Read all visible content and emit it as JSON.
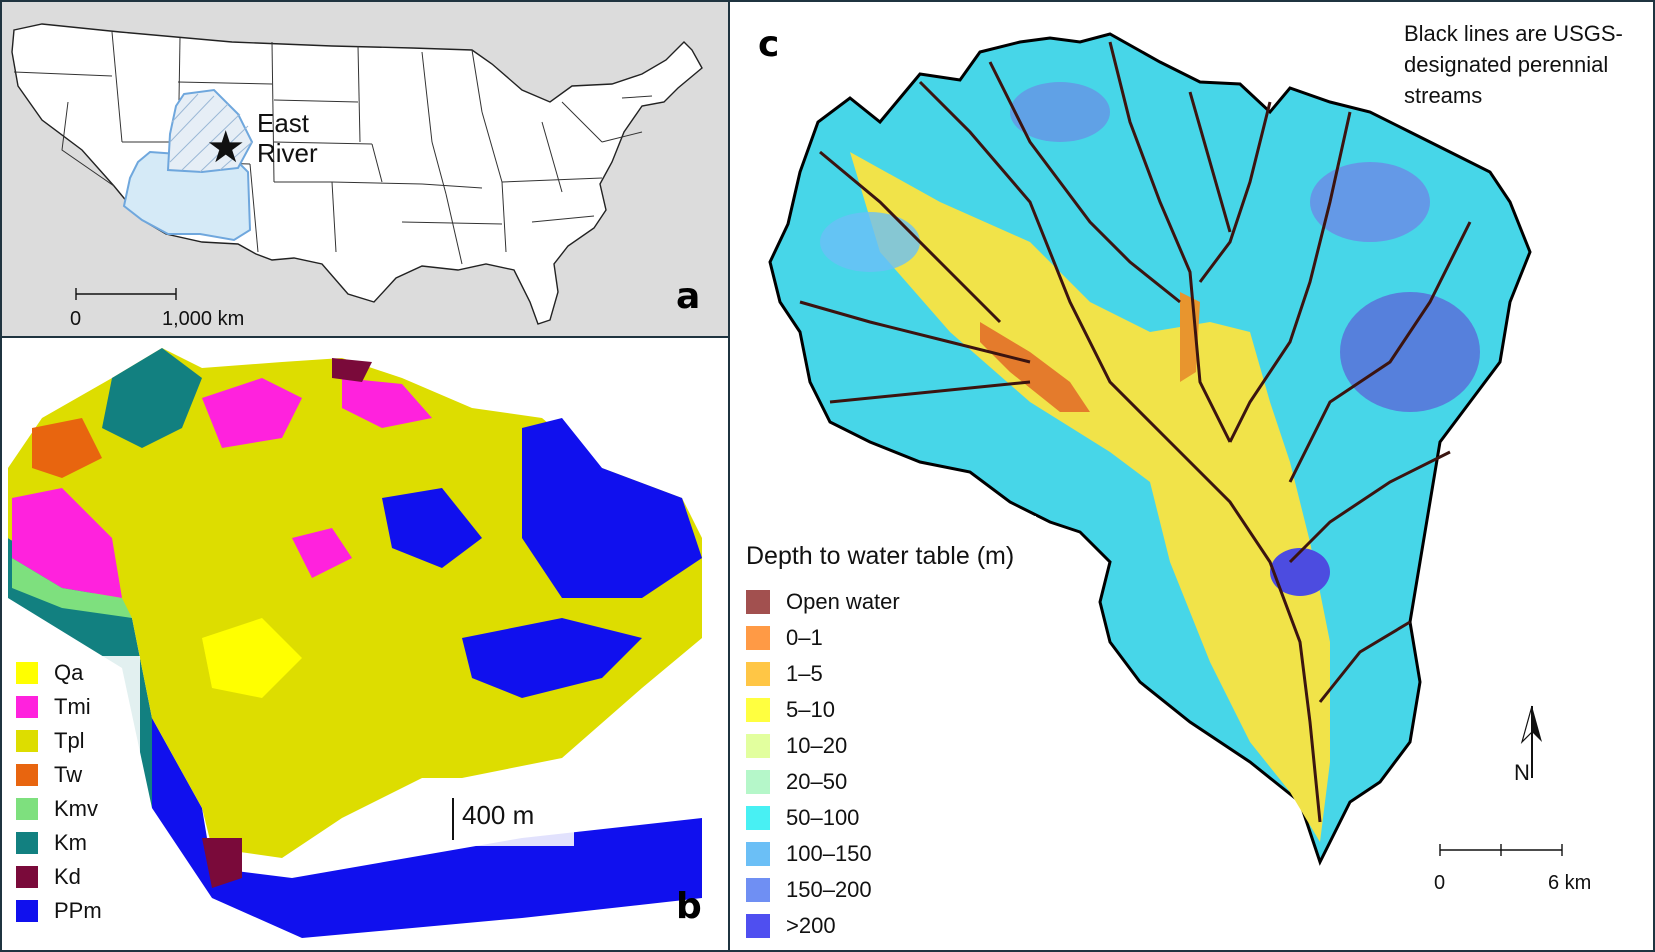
{
  "panel_a": {
    "label": "a",
    "site_name_line1": "East",
    "site_name_line2": "River",
    "scale": {
      "zero": "0",
      "end": "1,000 km"
    },
    "colors": {
      "background": "#dcdcdc",
      "land": "#ffffff",
      "basin_fill": "#d5eaf7",
      "basin_outline": "#6fa7dd"
    },
    "icons": {
      "site_marker": "star-icon"
    }
  },
  "panel_b": {
    "label": "b",
    "scale_bar": "400 m",
    "legend": [
      {
        "code": "Qa",
        "color": "#ffff00"
      },
      {
        "code": "Tmi",
        "color": "#ff22dd"
      },
      {
        "code": "Tpl",
        "color": "#dddd00"
      },
      {
        "code": "Tw",
        "color": "#e8650f"
      },
      {
        "code": "Kmv",
        "color": "#7ee07e"
      },
      {
        "code": "Km",
        "color": "#128080"
      },
      {
        "code": "Kd",
        "color": "#7a0a3a"
      },
      {
        "code": "PPm",
        "color": "#1010ee"
      }
    ]
  },
  "panel_c": {
    "label": "c",
    "note": "Black lines are USGS-designated perennial streams",
    "legend_title": "Depth to water table (m)",
    "legend": [
      {
        "label": "Open water",
        "color": "#a2504f"
      },
      {
        "label": "0–1",
        "color": "#ff9a45"
      },
      {
        "label": "1–5",
        "color": "#ffc645"
      },
      {
        "label": "5–10",
        "color": "#ffff40"
      },
      {
        "label": "10–20",
        "color": "#e2ff9e"
      },
      {
        "label": "20–50",
        "color": "#b5f7c9"
      },
      {
        "label": "50–100",
        "color": "#48f0f3"
      },
      {
        "label": "100–150",
        "color": "#6bbff6"
      },
      {
        "label": "150–200",
        "color": "#6f8ff3"
      },
      {
        "label": ">200",
        "color": "#4f4ff0"
      }
    ],
    "north": "N",
    "scale": {
      "zero": "0",
      "end": "6 km"
    },
    "icons": {
      "north_arrow": "north-arrow-icon"
    }
  }
}
